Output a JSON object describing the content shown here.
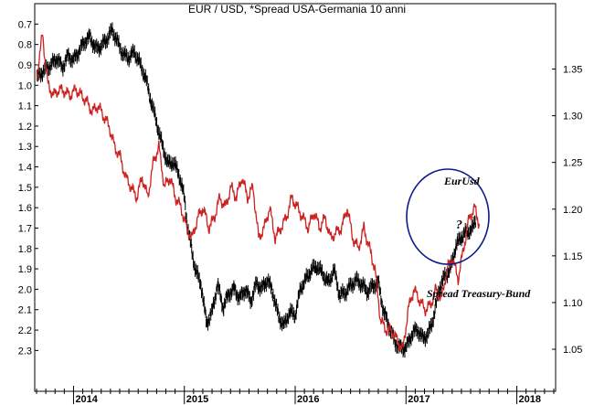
{
  "chart_data": {
    "type": "line",
    "title": "EUR / USD, *Spread USA-Germania 10 anni",
    "x_axis": {
      "range": [
        2013.65,
        2018.35
      ],
      "year_labels": [
        "2014",
        "2015",
        "2016",
        "2017",
        "2018"
      ],
      "year_values": [
        2014,
        2015,
        2016,
        2017,
        2018
      ]
    },
    "left_axis": {
      "inverted": true,
      "range": [
        0.6,
        2.5
      ],
      "tick_labels": [
        "0.7",
        "0.8",
        "0.9",
        "1.0",
        "1.1",
        "1.2",
        "1.3",
        "1.4",
        "1.5",
        "1.6",
        "1.7",
        "1.8",
        "1.9",
        "2.0",
        "2.1",
        "2.2",
        "2.3"
      ],
      "tick_values": [
        0.7,
        0.8,
        0.9,
        1.0,
        1.1,
        1.2,
        1.3,
        1.4,
        1.5,
        1.6,
        1.7,
        1.8,
        1.9,
        2.0,
        2.1,
        2.2,
        2.3
      ]
    },
    "right_axis": {
      "range": [
        1.005,
        1.42
      ],
      "tick_labels": [
        "1.35",
        "1.30",
        "1.25",
        "1.20",
        "1.15",
        "1.10",
        "1.05"
      ],
      "tick_values": [
        1.35,
        1.3,
        1.25,
        1.2,
        1.15,
        1.1,
        1.05
      ]
    },
    "grid": false,
    "series": [
      {
        "name": "EurUsd",
        "axis": "right",
        "color": "#000000",
        "style": "bars",
        "x": [
          2013.67,
          2013.7,
          2013.75,
          2013.8,
          2013.85,
          2013.9,
          2013.95,
          2014.0,
          2014.05,
          2014.1,
          2014.15,
          2014.2,
          2014.25,
          2014.3,
          2014.35,
          2014.4,
          2014.45,
          2014.5,
          2014.55,
          2014.6,
          2014.65,
          2014.7,
          2014.75,
          2014.8,
          2014.85,
          2014.9,
          2014.95,
          2015.0,
          2015.03,
          2015.06,
          2015.1,
          2015.15,
          2015.2,
          2015.25,
          2015.3,
          2015.35,
          2015.4,
          2015.45,
          2015.5,
          2015.55,
          2015.6,
          2015.65,
          2015.7,
          2015.75,
          2015.8,
          2015.85,
          2015.9,
          2015.95,
          2016.0,
          2016.05,
          2016.1,
          2016.15,
          2016.2,
          2016.25,
          2016.3,
          2016.35,
          2016.4,
          2016.45,
          2016.5,
          2016.55,
          2016.6,
          2016.65,
          2016.7,
          2016.75,
          2016.8,
          2016.85,
          2016.9,
          2016.95,
          2017.0,
          2017.05,
          2017.1,
          2017.15,
          2017.2,
          2017.25,
          2017.3,
          2017.35,
          2017.4,
          2017.45,
          2017.5,
          2017.55,
          2017.6,
          2017.63
        ],
        "values": [
          1.34,
          1.345,
          1.35,
          1.355,
          1.362,
          1.352,
          1.365,
          1.36,
          1.37,
          1.38,
          1.385,
          1.372,
          1.375,
          1.382,
          1.392,
          1.378,
          1.365,
          1.362,
          1.368,
          1.355,
          1.34,
          1.315,
          1.292,
          1.268,
          1.248,
          1.25,
          1.238,
          1.212,
          1.18,
          1.16,
          1.135,
          1.12,
          1.078,
          1.09,
          1.12,
          1.095,
          1.11,
          1.115,
          1.105,
          1.115,
          1.102,
          1.121,
          1.115,
          1.125,
          1.11,
          1.085,
          1.075,
          1.09,
          1.086,
          1.115,
          1.125,
          1.135,
          1.138,
          1.13,
          1.12,
          1.135,
          1.108,
          1.11,
          1.118,
          1.124,
          1.12,
          1.112,
          1.118,
          1.122,
          1.09,
          1.075,
          1.058,
          1.052,
          1.052,
          1.066,
          1.072,
          1.062,
          1.066,
          1.085,
          1.115,
          1.128,
          1.135,
          1.16,
          1.17,
          1.175,
          1.178,
          1.19
        ]
      },
      {
        "name": "Spread Treasury-Bund",
        "axis": "left",
        "color": "#cc2222",
        "style": "line",
        "x": [
          2013.67,
          2013.72,
          2013.77,
          2013.82,
          2013.87,
          2013.92,
          2013.97,
          2014.02,
          2014.07,
          2014.12,
          2014.17,
          2014.22,
          2014.27,
          2014.32,
          2014.37,
          2014.42,
          2014.47,
          2014.52,
          2014.57,
          2014.62,
          2014.67,
          2014.72,
          2014.77,
          2014.82,
          2014.87,
          2014.92,
          2014.97,
          2015.02,
          2015.07,
          2015.12,
          2015.17,
          2015.22,
          2015.27,
          2015.32,
          2015.37,
          2015.42,
          2015.47,
          2015.52,
          2015.57,
          2015.62,
          2015.67,
          2015.72,
          2015.77,
          2015.82,
          2015.87,
          2015.92,
          2015.97,
          2016.02,
          2016.07,
          2016.12,
          2016.17,
          2016.22,
          2016.27,
          2016.32,
          2016.37,
          2016.42,
          2016.47,
          2016.52,
          2016.57,
          2016.62,
          2016.67,
          2016.72,
          2016.77,
          2016.82,
          2016.87,
          2016.92,
          2016.97,
          2017.02,
          2017.07,
          2017.12,
          2017.17,
          2017.22,
          2017.27,
          2017.32,
          2017.37,
          2017.42,
          2017.47,
          2017.52,
          2017.57,
          2017.62,
          2017.67
        ],
        "values": [
          0.95,
          0.75,
          1.0,
          1.05,
          1.02,
          1.03,
          1.05,
          1.02,
          1.05,
          1.08,
          1.13,
          1.1,
          1.15,
          1.2,
          1.3,
          1.35,
          1.45,
          1.5,
          1.55,
          1.45,
          1.55,
          1.38,
          1.3,
          1.5,
          1.45,
          1.55,
          1.6,
          1.7,
          1.75,
          1.65,
          1.6,
          1.7,
          1.65,
          1.55,
          1.6,
          1.5,
          1.55,
          1.45,
          1.55,
          1.5,
          1.75,
          1.7,
          1.6,
          1.75,
          1.7,
          1.65,
          1.55,
          1.6,
          1.65,
          1.7,
          1.62,
          1.7,
          1.65,
          1.75,
          1.72,
          1.7,
          1.6,
          1.75,
          1.8,
          1.7,
          1.8,
          1.9,
          2.15,
          2.2,
          2.2,
          2.25,
          2.3,
          2.1,
          2.0,
          2.05,
          2.1,
          2.08,
          2.0,
          2.05,
          1.9,
          1.85,
          1.95,
          1.8,
          1.65,
          1.6,
          1.7
        ]
      }
    ],
    "annotations": [
      {
        "text": "EurUsd"
      },
      {
        "text": "?"
      },
      {
        "text": "Spread Treasury-Bund"
      }
    ],
    "highlight_circle_color": "#0d1a8c"
  }
}
